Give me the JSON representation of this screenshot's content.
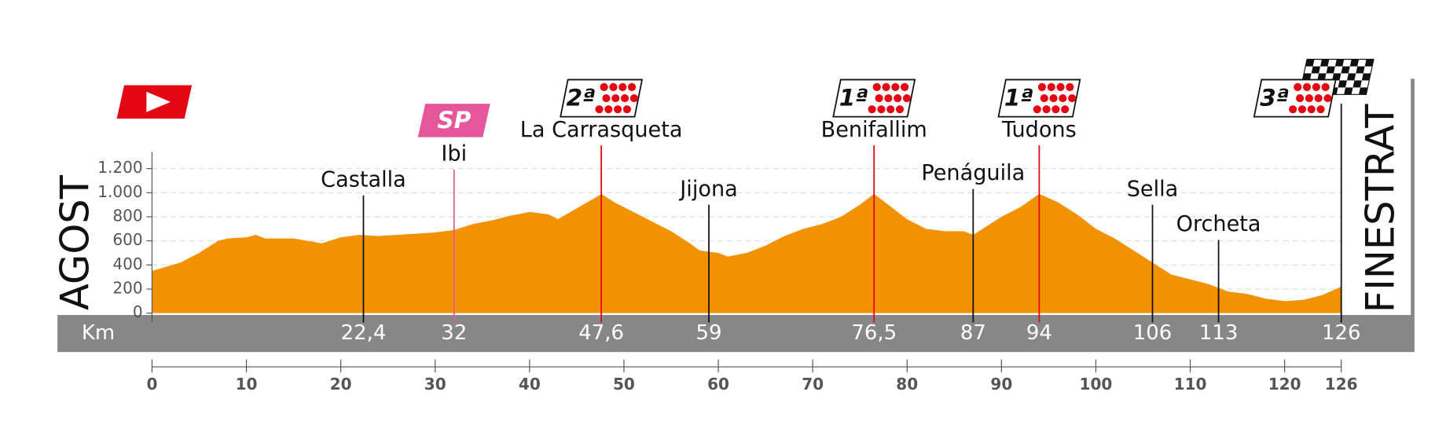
{
  "chart_data": {
    "type": "area",
    "color": "#f39200",
    "km_label": "Km",
    "start": {
      "name": "AGOST"
    },
    "finish": {
      "name": "FINESTRAT",
      "km": 126,
      "badge": "3ª"
    },
    "x": [
      0,
      3,
      5,
      7,
      8,
      10,
      11,
      12,
      15,
      18,
      20,
      22,
      24,
      26,
      28,
      30,
      32,
      34,
      36,
      38,
      40,
      42,
      43,
      45,
      47,
      47.6,
      49,
      51,
      53,
      55,
      57,
      58,
      60,
      61,
      63,
      65,
      67,
      69,
      71,
      73,
      75,
      76.5,
      78,
      80,
      82,
      84,
      86,
      87,
      88,
      90,
      92,
      94,
      96,
      98,
      100,
      102,
      104,
      106,
      108,
      110,
      112,
      114,
      116,
      118,
      120,
      122,
      124,
      126
    ],
    "values": [
      350,
      420,
      500,
      600,
      620,
      630,
      650,
      620,
      620,
      580,
      630,
      650,
      640,
      650,
      660,
      670,
      690,
      740,
      770,
      810,
      840,
      820,
      780,
      870,
      960,
      990,
      920,
      840,
      760,
      680,
      580,
      520,
      500,
      470,
      500,
      560,
      640,
      700,
      740,
      800,
      900,
      990,
      900,
      780,
      700,
      680,
      680,
      650,
      700,
      800,
      880,
      990,
      920,
      820,
      700,
      620,
      520,
      420,
      320,
      280,
      240,
      180,
      160,
      120,
      100,
      110,
      150,
      220
    ],
    "xlim": [
      0,
      126
    ],
    "xticks": [
      0,
      10,
      20,
      30,
      40,
      50,
      60,
      70,
      80,
      90,
      100,
      110,
      120,
      126
    ],
    "ylim": [
      0,
      1300
    ],
    "yticks": [
      0,
      200,
      400,
      600,
      800,
      {
        "value": 1000,
        "label": "1.000"
      },
      {
        "value": 1200,
        "label": "1.200"
      }
    ],
    "grid": true,
    "markers": [
      {
        "name": "Castalla",
        "km": {
          "value": 22.4,
          "label": "22,4"
        }
      },
      {
        "name": "Ibi",
        "km": 32,
        "badge": "SP"
      },
      {
        "name": "La Carrasqueta",
        "km": {
          "value": 47.6,
          "label": "47,6"
        },
        "badge": "2ª"
      },
      {
        "name": "Jijona",
        "km": 59
      },
      {
        "name": "Benifallim",
        "km": {
          "value": 76.5,
          "label": "76,5"
        },
        "badge": "1ª"
      },
      {
        "name": "Penáguila",
        "km": 87
      },
      {
        "name": "Tudons",
        "km": 94,
        "badge": "1ª"
      },
      {
        "name": "Sella",
        "km": 106
      },
      {
        "name": "Orcheta",
        "km": 113
      }
    ]
  }
}
